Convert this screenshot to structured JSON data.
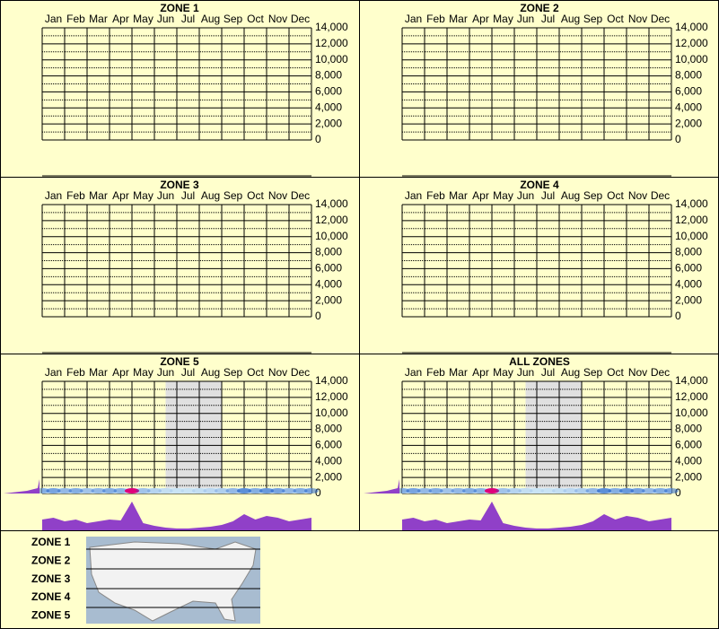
{
  "chart_data": [
    {
      "type": "grid",
      "title": "ZONE 1",
      "categories": [
        "Jan",
        "Feb",
        "Mar",
        "Apr",
        "May",
        "Jun",
        "Jul",
        "Aug",
        "Sep",
        "Oct",
        "Nov",
        "Dec"
      ],
      "ylim": [
        0,
        14000
      ],
      "yticks": [
        0,
        {
          "value": 2000,
          "label": "2,000"
        },
        {
          "value": 4000,
          "label": "4,000"
        },
        {
          "value": 6000,
          "label": "6,000"
        },
        {
          "value": 8000,
          "label": "8,000"
        },
        {
          "value": 10000,
          "label": "10,000"
        },
        {
          "value": 12000,
          "label": "12,000"
        },
        {
          "value": 14000,
          "label": "14,000"
        }
      ]
    },
    {
      "type": "grid",
      "title": "ZONE 2",
      "categories": [
        "Jan",
        "Feb",
        "Mar",
        "Apr",
        "May",
        "Jun",
        "Jul",
        "Aug",
        "Sep",
        "Oct",
        "Nov",
        "Dec"
      ],
      "ylim": [
        0,
        14000
      ],
      "yticks": [
        0,
        {
          "value": 2000,
          "label": "2,000"
        },
        {
          "value": 4000,
          "label": "4,000"
        },
        {
          "value": 6000,
          "label": "6,000"
        },
        {
          "value": 8000,
          "label": "8,000"
        },
        {
          "value": 10000,
          "label": "10,000"
        },
        {
          "value": 12000,
          "label": "12,000"
        },
        {
          "value": 14000,
          "label": "14,000"
        }
      ]
    },
    {
      "type": "grid",
      "title": "ZONE 3",
      "categories": [
        "Jan",
        "Feb",
        "Mar",
        "Apr",
        "May",
        "Jun",
        "Jul",
        "Aug",
        "Sep",
        "Oct",
        "Nov",
        "Dec"
      ],
      "ylim": [
        0,
        14000
      ],
      "yticks": [
        0,
        {
          "value": 2000,
          "label": "2,000"
        },
        {
          "value": 4000,
          "label": "4,000"
        },
        {
          "value": 6000,
          "label": "6,000"
        },
        {
          "value": 8000,
          "label": "8,000"
        },
        {
          "value": 10000,
          "label": "10,000"
        },
        {
          "value": 12000,
          "label": "12,000"
        },
        {
          "value": 14000,
          "label": "14,000"
        }
      ]
    },
    {
      "type": "grid",
      "title": "ZONE 4",
      "categories": [
        "Jan",
        "Feb",
        "Mar",
        "Apr",
        "May",
        "Jun",
        "Jul",
        "Aug",
        "Sep",
        "Oct",
        "Nov",
        "Dec"
      ],
      "ylim": [
        0,
        14000
      ],
      "yticks": [
        0,
        {
          "value": 2000,
          "label": "2,000"
        },
        {
          "value": 4000,
          "label": "4,000"
        },
        {
          "value": 6000,
          "label": "6,000"
        },
        {
          "value": 8000,
          "label": "8,000"
        },
        {
          "value": 10000,
          "label": "10,000"
        },
        {
          "value": 12000,
          "label": "12,000"
        },
        {
          "value": 14000,
          "label": "14,000"
        }
      ]
    },
    {
      "type": "density",
      "title": "ZONE 5",
      "categories": [
        "Jan",
        "Feb",
        "Mar",
        "Apr",
        "May",
        "Jun",
        "Jul",
        "Aug",
        "Sep",
        "Oct",
        "Nov",
        "Dec"
      ],
      "ylim": [
        0,
        14000
      ],
      "yticks": [
        0,
        {
          "value": 2000,
          "label": "2,000"
        },
        {
          "value": 4000,
          "label": "4,000"
        },
        {
          "value": 6000,
          "label": "6,000"
        },
        {
          "value": 8000,
          "label": "8,000"
        },
        {
          "value": 10000,
          "label": "10,000"
        },
        {
          "value": 12000,
          "label": "12,000"
        },
        {
          "value": 14000,
          "label": "14,000"
        }
      ],
      "shade": [
        5.5,
        8
      ],
      "color": "#9040c8",
      "xlim": [
        0,
        12
      ],
      "x": [
        0,
        0.5,
        1,
        1.5,
        2,
        2.5,
        3,
        3.5,
        4,
        4.5,
        5,
        5.5,
        6,
        6.5,
        7,
        7.5,
        8,
        8.5,
        9,
        9.5,
        10,
        10.5,
        11,
        11.5,
        12
      ],
      "values": [
        12,
        14,
        10,
        12,
        8,
        10,
        12,
        11,
        32,
        8,
        5,
        3,
        2,
        2,
        3,
        4,
        6,
        10,
        18,
        12,
        16,
        14,
        10,
        12,
        14
      ]
    },
    {
      "type": "density",
      "title": "ALL ZONES",
      "categories": [
        "Jan",
        "Feb",
        "Mar",
        "Apr",
        "May",
        "Jun",
        "Jul",
        "Aug",
        "Sep",
        "Oct",
        "Nov",
        "Dec"
      ],
      "ylim": [
        0,
        14000
      ],
      "yticks": [
        0,
        {
          "value": 2000,
          "label": "2,000"
        },
        {
          "value": 4000,
          "label": "4,000"
        },
        {
          "value": 6000,
          "label": "6,000"
        },
        {
          "value": 8000,
          "label": "8,000"
        },
        {
          "value": 10000,
          "label": "10,000"
        },
        {
          "value": 12000,
          "label": "12,000"
        },
        {
          "value": 14000,
          "label": "14,000"
        }
      ],
      "shade": [
        5.5,
        8
      ],
      "color": "#9040c8",
      "xlim": [
        0,
        12
      ],
      "x": [
        0,
        0.5,
        1,
        1.5,
        2,
        2.5,
        3,
        3.5,
        4,
        4.5,
        5,
        5.5,
        6,
        6.5,
        7,
        7.5,
        8,
        8.5,
        9,
        9.5,
        10,
        10.5,
        11,
        11.5,
        12
      ],
      "values": [
        12,
        14,
        10,
        12,
        8,
        10,
        12,
        11,
        32,
        8,
        5,
        3,
        2,
        2,
        3,
        4,
        6,
        10,
        18,
        12,
        16,
        14,
        10,
        12,
        14
      ]
    }
  ],
  "legend": {
    "zones": [
      "ZONE 1",
      "ZONE 2",
      "ZONE 3",
      "ZONE 4",
      "ZONE 5"
    ]
  }
}
